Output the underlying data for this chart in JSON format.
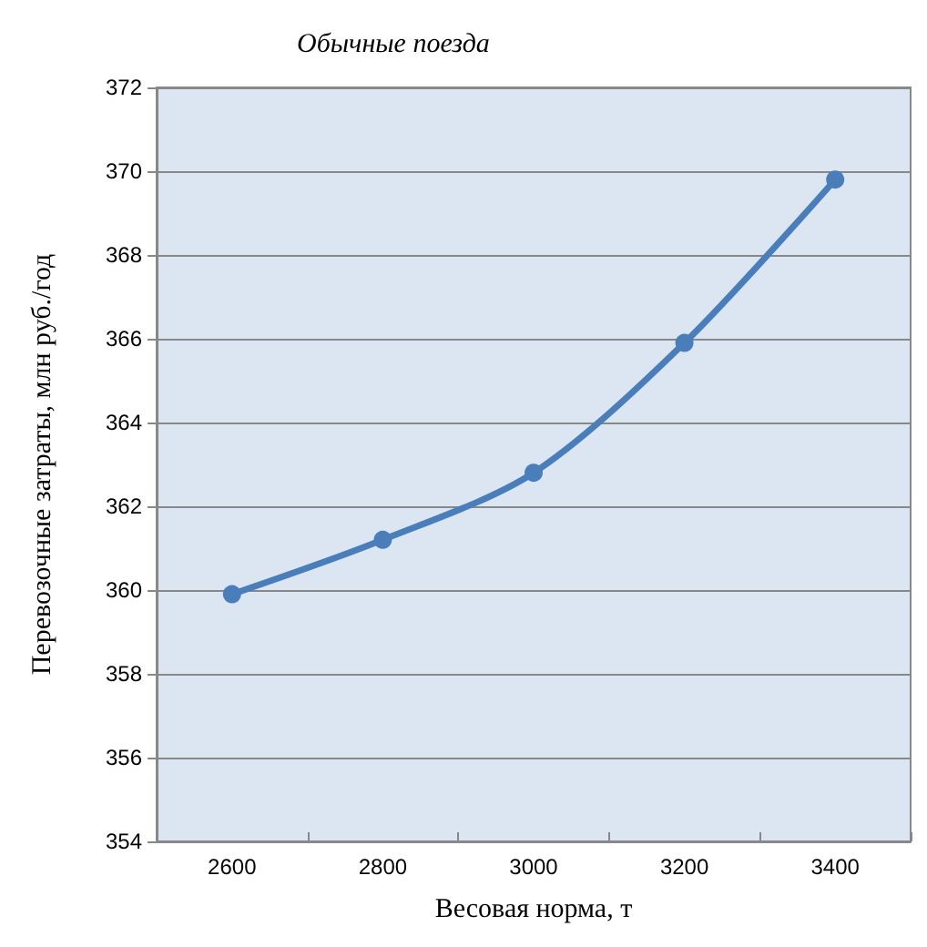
{
  "chart_data": {
    "type": "line",
    "title": "Обычные поезда",
    "xlabel": "Весовая норма, т",
    "ylabel": "Перевозочные затраты, млн руб./год",
    "categories": [
      "2600",
      "2800",
      "3000",
      "3200",
      "3400"
    ],
    "series": [
      {
        "color": "#4a7ebb",
        "values": [
          359.9,
          361.2,
          362.8,
          365.9,
          369.8
        ]
      }
    ],
    "ylim": [
      354,
      372
    ],
    "yticks": [
      354,
      356,
      358,
      360,
      362,
      364,
      366,
      368,
      370,
      372
    ],
    "grid": "y",
    "marker": "circle",
    "line_style": "solid"
  }
}
